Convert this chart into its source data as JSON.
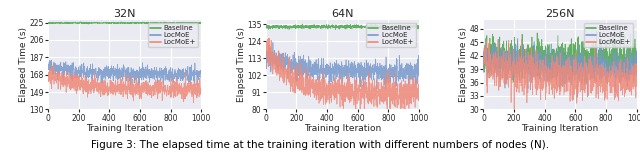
{
  "subplots": [
    {
      "title": "32N",
      "xlabel": "Training Iteration",
      "ylabel": "Elapsed Time (s)",
      "ylim": [
        130,
        228
      ],
      "yticks": [
        130,
        149,
        168,
        187,
        206,
        225
      ],
      "xlim": [
        0,
        1000
      ],
      "baseline_level": 224.5,
      "baseline_noise": 0.4,
      "locmoe_start": 176,
      "locmoe_end": 168,
      "locmoe_decay": 200,
      "locmoe_noise": 4.0,
      "locmoeplus_start": 170,
      "locmoeplus_end": 152,
      "locmoeplus_decay": 180,
      "locmoeplus_noise": 5.0
    },
    {
      "title": "64N",
      "xlabel": "Training Iteration",
      "ylabel": "Elapsed Time (s)",
      "ylim": [
        80,
        138
      ],
      "yticks": [
        80,
        91,
        102,
        113,
        124,
        135
      ],
      "xlim": [
        0,
        1000
      ],
      "baseline_level": 133.5,
      "baseline_noise": 0.6,
      "locmoe_start": 116,
      "locmoe_end": 104,
      "locmoe_decay": 200,
      "locmoe_noise": 3.5,
      "locmoeplus_start": 120,
      "locmoeplus_end": 91,
      "locmoeplus_decay": 150,
      "locmoeplus_noise": 4.5
    },
    {
      "title": "256N",
      "xlabel": "Training Iteration",
      "ylabel": "Elapsed Time (s)",
      "ylim": [
        30,
        50
      ],
      "yticks": [
        30,
        33,
        36,
        39,
        42,
        45,
        48
      ],
      "xlim": [
        0,
        1000
      ],
      "baseline_level": 41.5,
      "baseline_noise": 2.0,
      "locmoe_start": 41.5,
      "locmoe_end": 39.0,
      "locmoe_decay": 300,
      "locmoe_noise": 1.8,
      "locmoeplus_start": 41.0,
      "locmoeplus_end": 36.5,
      "locmoeplus_decay": 250,
      "locmoeplus_noise": 2.2
    }
  ],
  "colors": {
    "baseline": "#55aa55",
    "locmoe": "#7799cc",
    "locmoeplus": "#ee8877"
  },
  "legend_labels": [
    "Baseline",
    "LocMoE",
    "LocMoE+"
  ],
  "n_points": 1000,
  "caption": "Figure 3: The elapsed time at the training iteration with different numbers of nodes (N).",
  "caption_fontsize": 7.5,
  "bg_color": "#eaeaf2"
}
